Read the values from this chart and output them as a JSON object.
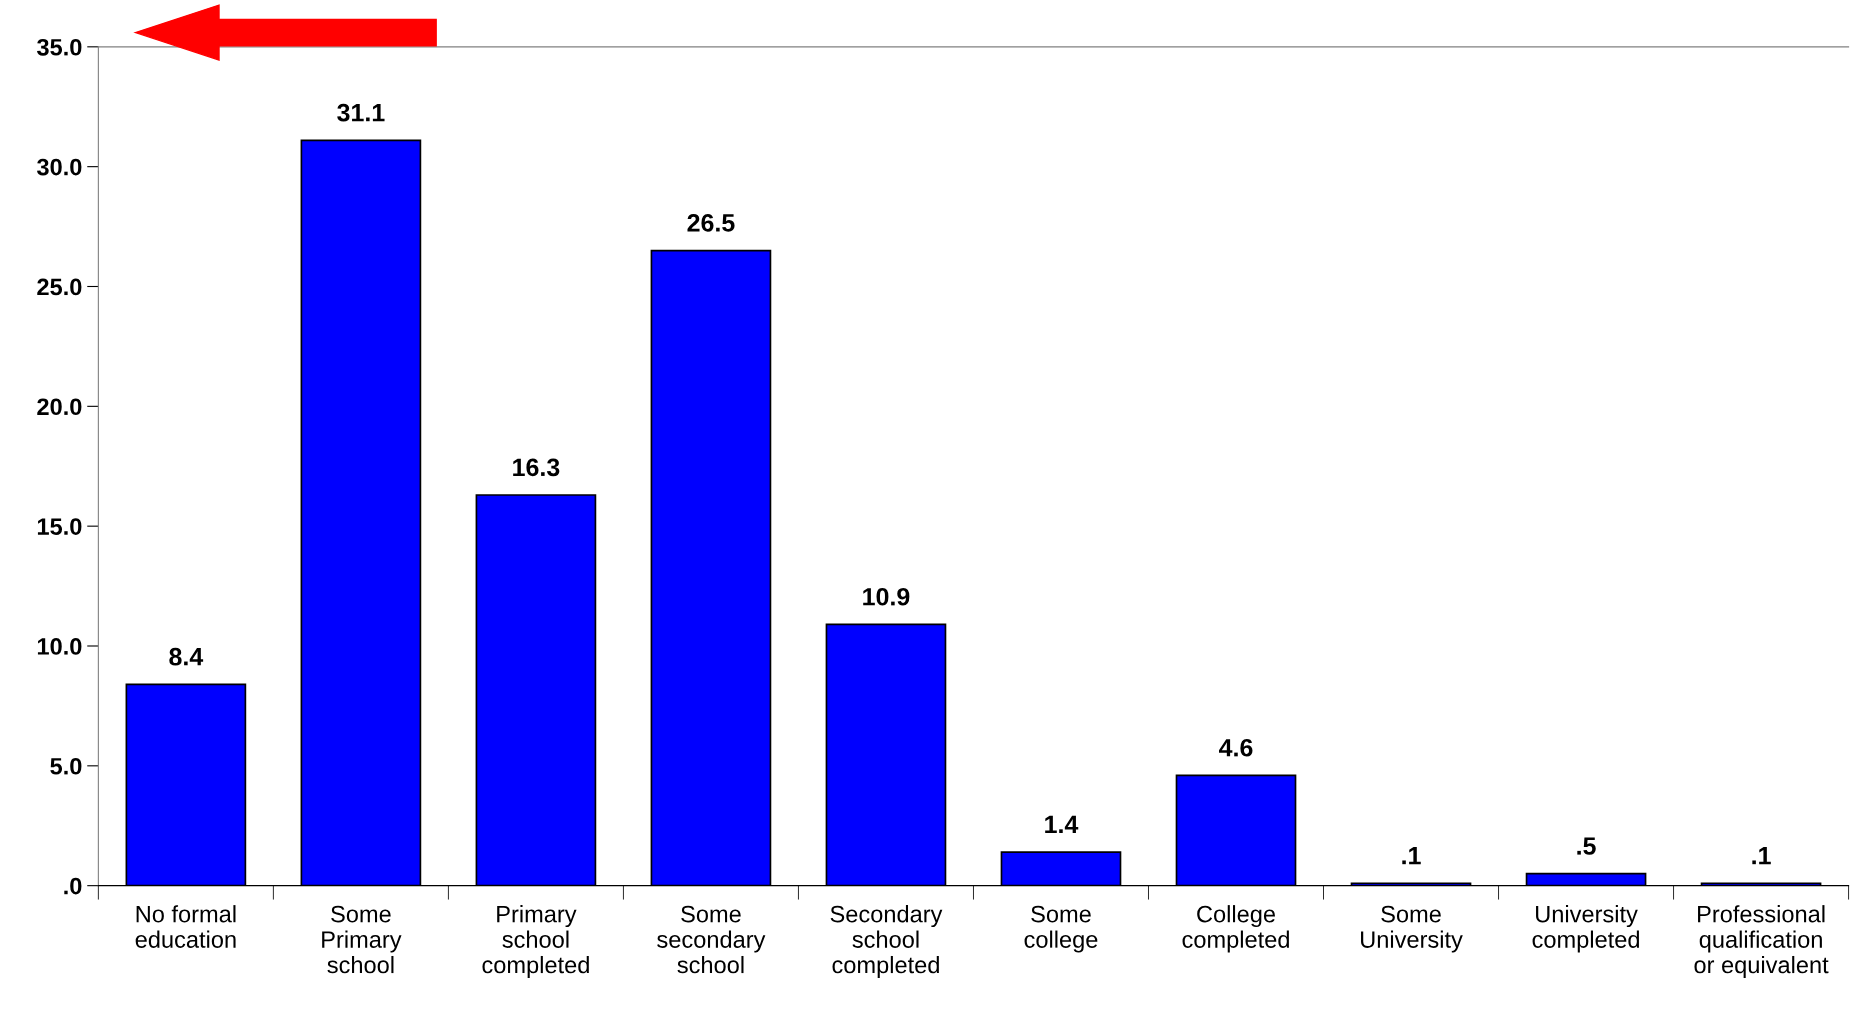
{
  "chart_data": {
    "type": "bar",
    "categories": [
      "No formal\neducation",
      "Some\nPrimary\nschool",
      "Primary\nschool\ncompleted",
      "Some\nsecondary\nschool",
      "Secondary\nschool\ncompleted",
      "Some\ncollege",
      "College\ncompleted",
      "Some\nUniversity",
      "University\ncompleted",
      "Professional\nqualification\nor equivalent"
    ],
    "values": [
      8.4,
      31.1,
      16.3,
      26.5,
      10.9,
      1.4,
      4.6,
      0.1,
      0.5,
      0.1
    ],
    "value_labels": [
      "8.4",
      "31.1",
      "16.3",
      "26.5",
      "10.9",
      "1.4",
      "4.6",
      ".1",
      ".5",
      ".1"
    ],
    "color": "#0000ff",
    "ylim": [
      0,
      35
    ],
    "yticks": [
      {
        "value": 0,
        "label": ".0"
      },
      {
        "value": 5,
        "label": "5.0"
      },
      {
        "value": 10,
        "label": "10.0"
      },
      {
        "value": 15,
        "label": "15.0"
      },
      {
        "value": 20,
        "label": "20.0"
      },
      {
        "value": 25,
        "label": "25.0"
      },
      {
        "value": 30,
        "label": "30.0"
      },
      {
        "value": 35,
        "label": "35.0"
      }
    ],
    "grid": false,
    "legend": false
  }
}
